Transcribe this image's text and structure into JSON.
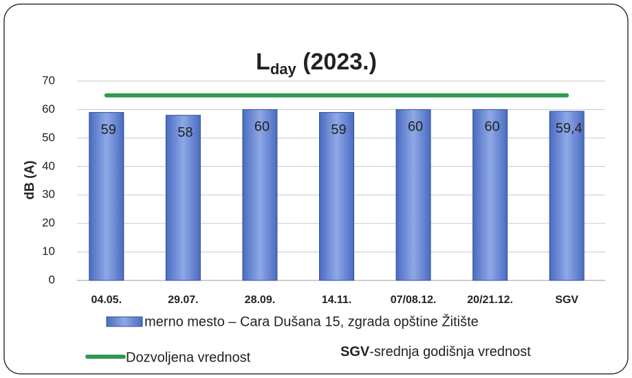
{
  "chart_data": {
    "type": "bar",
    "title": [
      "L",
      "day",
      " (2023.)"
    ],
    "ylabel": "dB (A)",
    "categories": [
      "04.05.",
      "29.07.",
      "28.09.",
      "14.11.",
      "07/08.12.",
      "20/21.12.",
      "SGV"
    ],
    "series": [
      {
        "name": "merno mesto – Cara Dušana 15, zgrada opštine Žitište",
        "type": "bar",
        "color": "#4a6bc1",
        "values": [
          59,
          58,
          60,
          59,
          60,
          60,
          59.4
        ],
        "value_labels": [
          "59",
          "58",
          "60",
          "59",
          "60",
          "60",
          "59,4"
        ]
      },
      {
        "name": "Dozvoljena vrednost",
        "type": "line",
        "color": "#2e9a52",
        "values": [
          65,
          65,
          65,
          65,
          65,
          65,
          65
        ]
      }
    ],
    "annotation": [
      "SGV",
      "-srednja godišnja vrednost"
    ],
    "ylim": [
      0,
      70
    ],
    "yticks": [
      0,
      10,
      20,
      30,
      40,
      50,
      60,
      70
    ],
    "grid": true
  }
}
